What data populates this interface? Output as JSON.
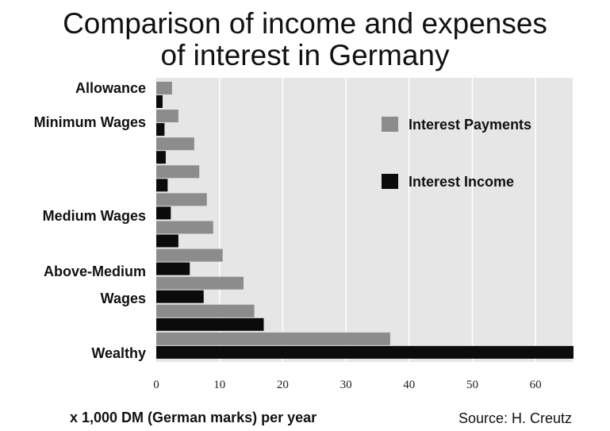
{
  "title_line1": "Comparison of income and expenses",
  "title_line2": "of interest in Germany",
  "x_note": "x 1,000 DM (German marks) per year",
  "source": "Source: H. Creutz",
  "colors": {
    "payments": "#8c8c8c",
    "income": "#0b0b0b",
    "plot_bg": "#e6e6e6",
    "grid": "#ffffff"
  },
  "chart_data": {
    "type": "bar",
    "orientation": "horizontal",
    "groups": [
      {
        "label": "Allowance",
        "payments": 2.5,
        "income": 1.0
      },
      {
        "label": "Minimum Wages",
        "payments": 3.5,
        "income": 1.3
      },
      {
        "label": "",
        "payments": 6.0,
        "income": 1.5
      },
      {
        "label": "",
        "payments": 6.8,
        "income": 1.8
      },
      {
        "label": "Medium Wages",
        "payments": 8.0,
        "income": 2.3
      },
      {
        "label": "",
        "payments": 9.0,
        "income": 3.5
      },
      {
        "label": "Above-Medium",
        "payments": 10.5,
        "income": 5.3
      },
      {
        "label": "Wages",
        "payments": 13.8,
        "income": 7.5
      },
      {
        "label": "",
        "payments": 15.5,
        "income": 17.0
      },
      {
        "label": "Wealthy",
        "payments": 37.0,
        "income": 66.0
      }
    ],
    "series": [
      {
        "name": "Interest Payments",
        "key": "payments",
        "color": "#8c8c8c"
      },
      {
        "name": "Interest Income",
        "key": "income",
        "color": "#0b0b0b"
      }
    ],
    "x_ticks": [
      0,
      10,
      20,
      30,
      40,
      50,
      60
    ],
    "xlim": [
      0,
      66
    ],
    "grid": true,
    "legend_position": "top-right"
  }
}
